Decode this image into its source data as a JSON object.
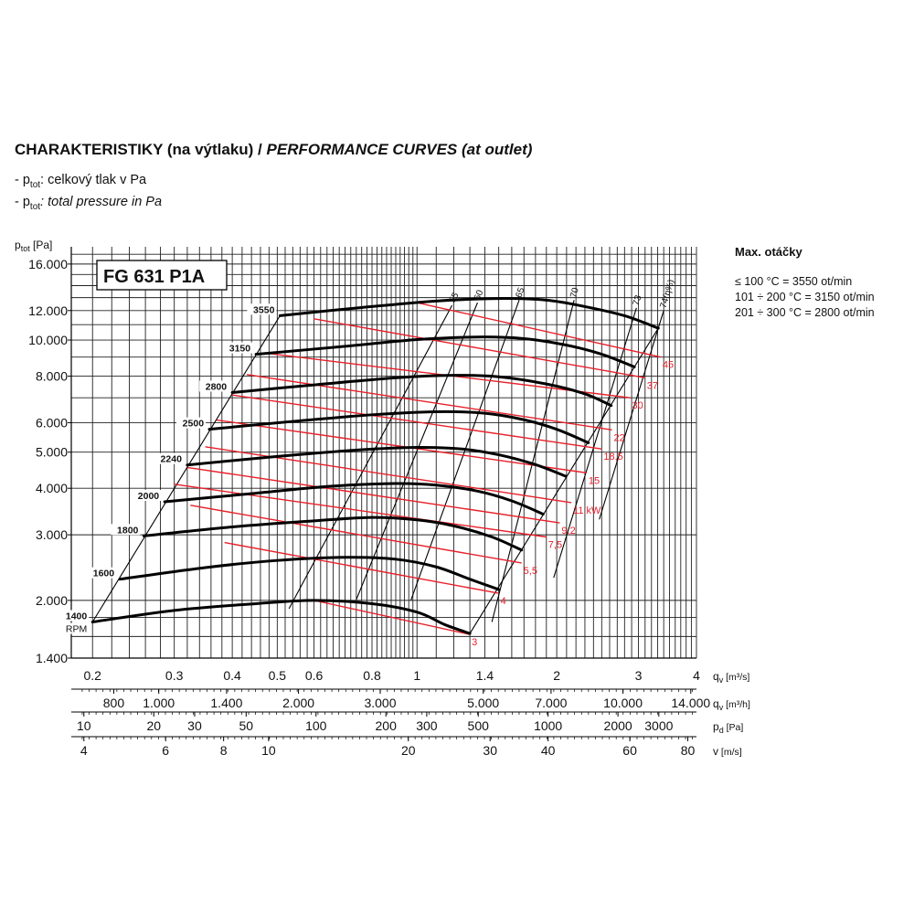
{
  "header": {
    "title_cz": "CHARAKTERISTIKY (na výtlaku) / ",
    "title_en": "PERFORMANCE CURVES (at outlet)",
    "legend_cz_prefix": "- p",
    "legend_cz_sub": "tot",
    "legend_cz_text": ": celkový tlak v Pa",
    "legend_en_prefix": "- p",
    "legend_en_sub": "tot",
    "legend_en_text": ": total pressure in Pa"
  },
  "side": {
    "title": "Max. otáčky",
    "rows": [
      "≤ 100 °C = 3550 ot/min",
      "101 ÷ 200 °C = 3150 ot/min",
      "201 ÷ 300 °C = 2800 ot/min"
    ]
  },
  "colors": {
    "rpm": "#000000",
    "power": "#e8202a",
    "grid": "#222222"
  },
  "chart_data": {
    "type": "line",
    "model_label": "FG 631 P1A",
    "ylabel": "p",
    "ylabel_sub": "tot",
    "ylabel_unit": " [Pa]",
    "yscale": "log",
    "ylim": [
      1400,
      16000
    ],
    "y_ticks": [
      {
        "label": "16.000",
        "value": 16000
      },
      {
        "label": "12.000",
        "value": 12000
      },
      {
        "label": "10.000",
        "value": 10000
      },
      {
        "label": "8.000",
        "value": 8000
      },
      {
        "label": "6.000",
        "value": 6000
      },
      {
        "label": "5.000",
        "value": 5000
      },
      {
        "label": "4.000",
        "value": 4000
      },
      {
        "label": "3.000",
        "value": 3000
      },
      {
        "label": "2.000",
        "value": 2000
      },
      {
        "label": "1.400",
        "value": 1400
      }
    ],
    "xscale": "log",
    "xlim": [
      0.18,
      4
    ],
    "x_axes": [
      {
        "label": "q",
        "sub": "v",
        "unit": " [m³/s]",
        "ticks": [
          {
            "label": "0.2",
            "value": 0.2
          },
          {
            "label": "0.3",
            "value": 0.3
          },
          {
            "label": "0.4",
            "value": 0.4
          },
          {
            "label": "0.5",
            "value": 0.5
          },
          {
            "label": "0.6",
            "value": 0.6
          },
          {
            "label": "0.8",
            "value": 0.8
          },
          {
            "label": "1",
            "value": 1
          },
          {
            "label": "1.4",
            "value": 1.4
          },
          {
            "label": "2",
            "value": 2
          },
          {
            "label": "3",
            "value": 3
          },
          {
            "label": "4",
            "value": 4
          }
        ]
      },
      {
        "label": "q",
        "sub": "v",
        "unit": " [m³/h]",
        "ticks": [
          {
            "label": "800",
            "value": 0.2222
          },
          {
            "label": "1.000",
            "value": 0.2778
          },
          {
            "label": "1.400",
            "value": 0.3889
          },
          {
            "label": "2.000",
            "value": 0.5556
          },
          {
            "label": "3.000",
            "value": 0.8333
          },
          {
            "label": "5.000",
            "value": 1.3889
          },
          {
            "label": "7.000",
            "value": 1.9444
          },
          {
            "label": "10.000",
            "value": 2.7778
          },
          {
            "label": "14.000",
            "value": 3.8889
          }
        ]
      },
      {
        "label": "p",
        "sub": "d",
        "unit": " [Pa]",
        "ticks": [
          {
            "label": "10",
            "value": 0.1916
          },
          {
            "label": "20",
            "value": 0.271
          },
          {
            "label": "30",
            "value": 0.3319
          },
          {
            "label": "50",
            "value": 0.4285
          },
          {
            "label": "100",
            "value": 0.606
          },
          {
            "label": "200",
            "value": 0.857
          },
          {
            "label": "300",
            "value": 1.0496
          },
          {
            "label": "500",
            "value": 1.355
          },
          {
            "label": "1000",
            "value": 1.916
          },
          {
            "label": "2000",
            "value": 2.71
          },
          {
            "label": "3000",
            "value": 3.319
          }
        ]
      },
      {
        "label": "v",
        "sub": "",
        "unit": " [m/s]",
        "ticks": [
          {
            "label": "4",
            "value": 0.1916
          },
          {
            "label": "6",
            "value": 0.2874
          },
          {
            "label": "8",
            "value": 0.3832
          },
          {
            "label": "10",
            "value": 0.479
          },
          {
            "label": "20",
            "value": 0.958
          },
          {
            "label": "30",
            "value": 1.437
          },
          {
            "label": "40",
            "value": 1.916
          },
          {
            "label": "60",
            "value": 2.874
          },
          {
            "label": "80",
            "value": 3.832
          }
        ]
      }
    ],
    "rpm_curves": [
      {
        "name": "1400",
        "unit_label": "RPM",
        "points": [
          [
            0.2,
            1750
          ],
          [
            0.3,
            1880
          ],
          [
            0.45,
            1960
          ],
          [
            0.6,
            2000
          ],
          [
            0.8,
            1960
          ],
          [
            1.0,
            1860
          ],
          [
            1.15,
            1720
          ],
          [
            1.3,
            1630
          ]
        ]
      },
      {
        "name": "1600",
        "points": [
          [
            0.229,
            2280
          ],
          [
            0.35,
            2450
          ],
          [
            0.5,
            2560
          ],
          [
            0.7,
            2610
          ],
          [
            0.9,
            2580
          ],
          [
            1.1,
            2460
          ],
          [
            1.3,
            2280
          ],
          [
            1.5,
            2140
          ]
        ]
      },
      {
        "name": "1800",
        "points": [
          [
            0.258,
            2980
          ],
          [
            0.4,
            3150
          ],
          [
            0.6,
            3270
          ],
          [
            0.8,
            3340
          ],
          [
            1.0,
            3290
          ],
          [
            1.2,
            3170
          ],
          [
            1.45,
            2960
          ],
          [
            1.68,
            2730
          ]
        ]
      },
      {
        "name": "2000",
        "points": [
          [
            0.286,
            3680
          ],
          [
            0.45,
            3880
          ],
          [
            0.65,
            4050
          ],
          [
            0.9,
            4120
          ],
          [
            1.1,
            4080
          ],
          [
            1.35,
            3930
          ],
          [
            1.6,
            3700
          ],
          [
            1.87,
            3410
          ]
        ]
      },
      {
        "name": "2240",
        "points": [
          [
            0.32,
            4620
          ],
          [
            0.5,
            4870
          ],
          [
            0.75,
            5070
          ],
          [
            1.0,
            5150
          ],
          [
            1.25,
            5100
          ],
          [
            1.5,
            4920
          ],
          [
            1.8,
            4630
          ],
          [
            2.09,
            4310
          ]
        ]
      },
      {
        "name": "2500",
        "points": [
          [
            0.357,
            5760
          ],
          [
            0.55,
            6060
          ],
          [
            0.8,
            6300
          ],
          [
            1.1,
            6420
          ],
          [
            1.4,
            6360
          ],
          [
            1.7,
            6110
          ],
          [
            2.0,
            5760
          ],
          [
            2.34,
            5300
          ]
        ]
      },
      {
        "name": "2800",
        "points": [
          [
            0.4,
            7230
          ],
          [
            0.6,
            7580
          ],
          [
            0.9,
            7920
          ],
          [
            1.2,
            8040
          ],
          [
            1.5,
            7970
          ],
          [
            1.9,
            7620
          ],
          [
            2.3,
            7170
          ],
          [
            2.62,
            6670
          ]
        ]
      },
      {
        "name": "3150",
        "points": [
          [
            0.45,
            9160
          ],
          [
            0.7,
            9620
          ],
          [
            1.0,
            10030
          ],
          [
            1.35,
            10190
          ],
          [
            1.7,
            10090
          ],
          [
            2.1,
            9690
          ],
          [
            2.5,
            9160
          ],
          [
            2.94,
            8470
          ]
        ]
      },
      {
        "name": "3550",
        "points": [
          [
            0.507,
            11630
          ],
          [
            0.75,
            12210
          ],
          [
            1.1,
            12730
          ],
          [
            1.5,
            12930
          ],
          [
            1.9,
            12800
          ],
          [
            2.3,
            12300
          ],
          [
            2.8,
            11620
          ],
          [
            3.31,
            10760
          ]
        ]
      }
    ],
    "power_curves": [
      {
        "name": "3",
        "points": [
          [
            0.6,
            2000
          ],
          [
            1.3,
            1620
          ]
        ]
      },
      {
        "name": "4",
        "points": [
          [
            0.385,
            2860
          ],
          [
            1.5,
            2090
          ]
        ]
      },
      {
        "name": "5,5",
        "points": [
          [
            0.325,
            3600
          ],
          [
            1.68,
            2520
          ]
        ]
      },
      {
        "name": "7,5",
        "points": [
          [
            0.3,
            4100
          ],
          [
            1.9,
            2960
          ]
        ]
      },
      {
        "name": "9,2",
        "points": [
          [
            0.32,
            4550
          ],
          [
            2.03,
            3230
          ]
        ]
      },
      {
        "name": "11 kW",
        "points": [
          [
            0.35,
            5170
          ],
          [
            2.15,
            3660
          ]
        ]
      },
      {
        "name": "15",
        "points": [
          [
            0.37,
            6100
          ],
          [
            2.32,
            4400
          ]
        ]
      },
      {
        "name": "18,5",
        "points": [
          [
            0.4,
            7120
          ],
          [
            2.5,
            5100
          ]
        ]
      },
      {
        "name": "22",
        "points": [
          [
            0.43,
            8080
          ],
          [
            2.63,
            5740
          ]
        ]
      },
      {
        "name": "30",
        "points": [
          [
            0.48,
            9200
          ],
          [
            2.88,
            7000
          ]
        ]
      },
      {
        "name": "37",
        "points": [
          [
            0.6,
            11400
          ],
          [
            3.1,
            7920
          ]
        ]
      },
      {
        "name": "45",
        "points": [
          [
            1.0,
            12600
          ],
          [
            3.35,
            9000
          ]
        ]
      }
    ],
    "efficiency_lines": [
      {
        "name": "55",
        "points": [
          [
            0.53,
            1900
          ],
          [
            1.19,
            12400
          ]
        ]
      },
      {
        "name": "60",
        "points": [
          [
            0.74,
            2010
          ],
          [
            1.35,
            12600
          ]
        ]
      },
      {
        "name": "65",
        "points": [
          [
            0.97,
            2000
          ],
          [
            1.66,
            12800
          ]
        ]
      },
      {
        "name": "70",
        "points": [
          [
            1.45,
            1750
          ],
          [
            2.18,
            12800
          ]
        ]
      },
      {
        "name": "73",
        "points": [
          [
            1.97,
            2300
          ],
          [
            2.97,
            12200
          ]
        ]
      },
      {
        "name": "74(η%)",
        "points": [
          [
            2.47,
            3300
          ],
          [
            3.4,
            12000
          ]
        ]
      }
    ],
    "envelope": {
      "left": [
        [
          0.2,
          1750
        ],
        [
          0.507,
          11630
        ]
      ],
      "right": [
        [
          1.3,
          1630
        ],
        [
          3.31,
          10760
        ]
      ]
    }
  }
}
